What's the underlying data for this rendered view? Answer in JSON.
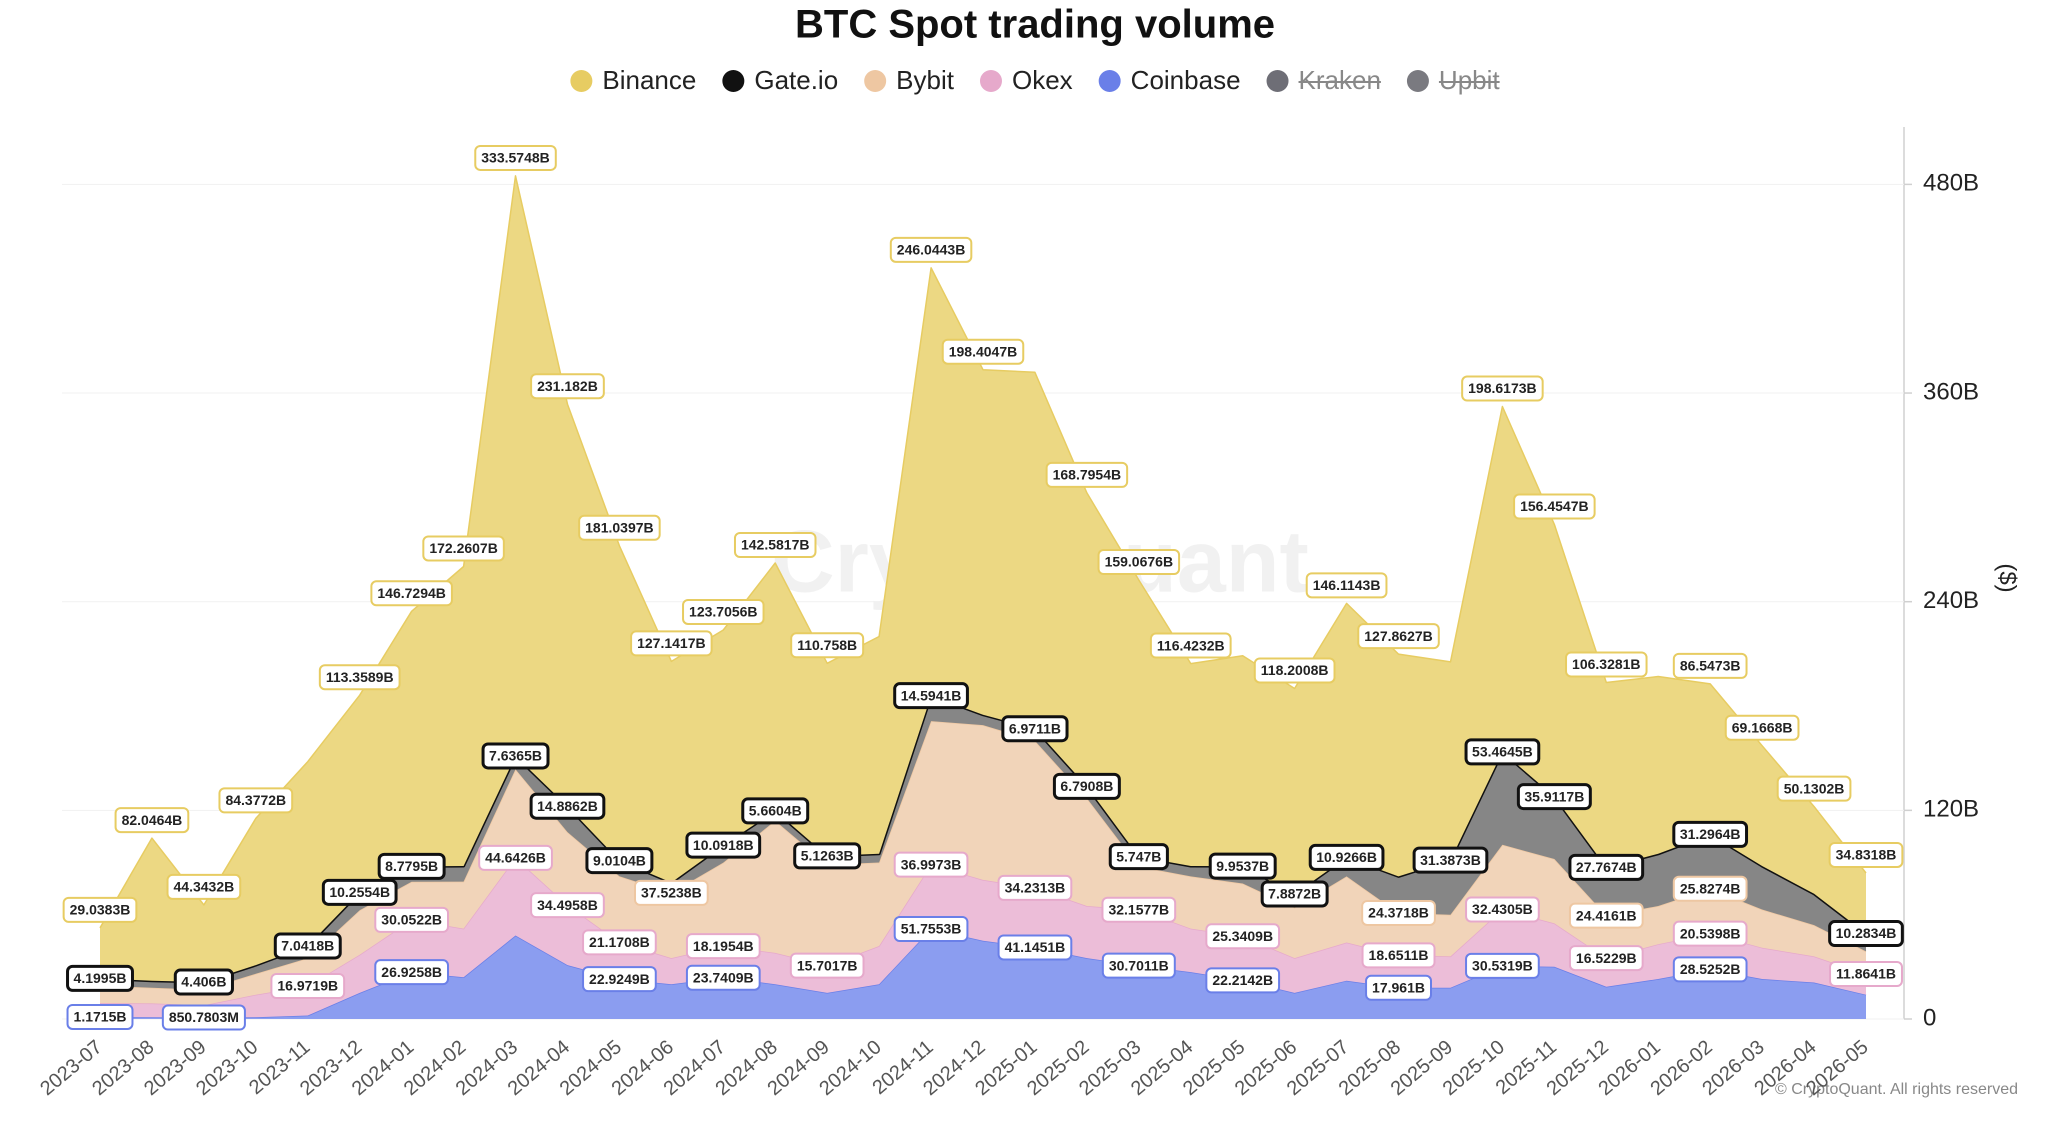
{
  "chart_data": {
    "type": "stacked-area",
    "title": "BTC Spot trading volume",
    "y_axis_label": "($)",
    "watermark": "CryptoQuant",
    "copyright": "© CryptoQuant. All rights reserved",
    "categories": [
      "2023-07",
      "2023-08",
      "2023-09",
      "2023-10",
      "2023-11",
      "2023-12",
      "2024-01",
      "2024-02",
      "2024-03",
      "2024-04",
      "2024-05",
      "2024-06",
      "2024-07",
      "2024-08",
      "2024-09",
      "2024-10",
      "2024-11",
      "2024-12",
      "2025-01",
      "2025-02",
      "2025-03",
      "2025-04",
      "2025-05",
      "2025-06",
      "2025-07",
      "2025-08",
      "2025-09",
      "2025-10",
      "2025-11",
      "2025-12",
      "2026-01",
      "2026-02",
      "2026-03",
      "2026-04",
      "2026-05"
    ],
    "ylim": [
      0,
      513
    ],
    "yticks": [
      0,
      {
        "value": 120,
        "label": "120B"
      },
      {
        "value": 240,
        "label": "240B"
      },
      {
        "value": 360,
        "label": "360B"
      },
      {
        "value": 480,
        "label": "480B"
      }
    ],
    "grid": true,
    "series": [
      {
        "name": "Binance",
        "color": "#e7cc62",
        "fill": "#ecd883",
        "values": [
          29.0383,
          82.0464,
          44.3432,
          84.3772,
          106,
          113.3589,
          146.7294,
          172.2607,
          333.5748,
          231.182,
          181.0397,
          127.1417,
          123.7056,
          142.5817,
          110.758,
          125,
          246.0443,
          198.4047,
          205,
          168.7954,
          159.0676,
          116.4232,
          121,
          118.2008,
          146.1143,
          127.8627,
          114,
          198.6173,
          156.4547,
          106.3281,
          102,
          86.5473,
          69.1668,
          50.1302,
          34.8318
        ],
        "value_labels": [
          "29.0383B",
          "82.0464B",
          "44.3432B",
          "84.3772B",
          null,
          "113.3589B",
          "146.7294B",
          "172.2607B",
          "333.5748B",
          "231.182B",
          "181.0397B",
          "127.1417B",
          "123.7056B",
          "142.5817B",
          "110.758B",
          null,
          "246.0443B",
          "198.4047B",
          null,
          "168.7954B",
          "159.0676B",
          "116.4232B",
          null,
          "118.2008B",
          "146.1143B",
          "127.8627B",
          null,
          "198.6173B",
          "156.4547B",
          "106.3281B",
          null,
          "86.5473B",
          "69.1668B",
          "50.1302B",
          "34.8318B"
        ]
      },
      {
        "name": "Gate.io",
        "color": "#111111",
        "fill": "#868686",
        "values": [
          4.1995,
          4,
          4.406,
          5,
          7.0418,
          10.2554,
          8.7795,
          9,
          7.6365,
          14.8862,
          9.0104,
          6,
          10.0918,
          5.6604,
          5.1263,
          5,
          14.5941,
          6,
          6.9711,
          6.7908,
          5.747,
          6,
          9.9537,
          7.8872,
          10.9266,
          21,
          31.3873,
          53.4645,
          35.9117,
          27.7674,
          30,
          31.2964,
          25,
          18,
          10.2834
        ],
        "value_labels": [
          "4.1995B",
          null,
          "4.406B",
          null,
          "7.0418B",
          "10.2554B",
          "8.7795B",
          null,
          "7.6365B",
          "14.8862B",
          "9.0104B",
          null,
          "10.0918B",
          "5.6604B",
          "5.1263B",
          null,
          "14.5941B",
          null,
          "6.9711B",
          "6.7908B",
          "5.747B",
          null,
          "9.9537B",
          "7.8872B",
          "10.9266B",
          null,
          "31.3873B",
          "53.4645B",
          "35.9117B",
          "27.7674B",
          null,
          "31.2964B",
          null,
          null,
          "10.2834B"
        ]
      },
      {
        "name": "Bybit",
        "color": "#eec7a2",
        "fill": "#f1d4b9",
        "values": [
          10,
          9,
          9,
          12,
          16,
          25.6,
          22,
          27,
          51,
          42,
          38,
          37.5238,
          48,
          76,
          58,
          48,
          82.6,
          89,
          84.6,
          62,
          24.8,
          30,
          30.4,
          29,
          38,
          24.3718,
          24,
          37.2,
          37,
          24.4161,
          22,
          25.8274,
          22,
          18,
          13
        ],
        "value_labels": [
          null,
          null,
          null,
          null,
          null,
          null,
          null,
          null,
          null,
          null,
          null,
          "37.5238B",
          null,
          null,
          null,
          null,
          null,
          null,
          null,
          null,
          null,
          null,
          null,
          null,
          null,
          "24.3718B",
          null,
          null,
          null,
          "24.4161B",
          null,
          "25.8274B",
          null,
          null,
          null
        ]
      },
      {
        "name": "Okex",
        "color": "#e6a9cb",
        "fill": "#ecbdd8",
        "values": [
          8,
          8,
          7,
          13,
          16.9719,
          22,
          30.0522,
          28,
          44.6426,
          34.4958,
          21.1708,
          15,
          18.1954,
          18,
          15.7017,
          22,
          36.9973,
          35,
          34.2313,
          30,
          32.1577,
          25,
          25.3409,
          20,
          22,
          18.6511,
          18,
          32.4305,
          25,
          16.5229,
          20,
          20.5398,
          18,
          15,
          11.8641
        ],
        "value_labels": [
          null,
          null,
          null,
          null,
          "16.9719B",
          null,
          "30.0522B",
          null,
          "44.6426B",
          "34.4958B",
          "21.1708B",
          null,
          "18.1954B",
          null,
          "15.7017B",
          null,
          "36.9973B",
          null,
          "34.2313B",
          null,
          "32.1577B",
          null,
          "25.3409B",
          null,
          null,
          "18.6511B",
          null,
          "32.4305B",
          null,
          "16.5229B",
          null,
          "20.5398B",
          null,
          null,
          "11.8641B"
        ]
      },
      {
        "name": "Coinbase",
        "color": "#6a7fe8",
        "fill": "#8b9df0",
        "values": [
          1.1715,
          1,
          0.8507803,
          1,
          2,
          15,
          26.9258,
          24,
          48,
          31,
          22.9249,
          20,
          23.7409,
          20,
          15,
          20,
          51.7553,
          45,
          41.1451,
          35,
          30.7011,
          27,
          22.2142,
          15,
          22,
          17.961,
          18,
          30.5319,
          30,
          18.5,
          23,
          28.5252,
          23,
          21,
          14
        ],
        "value_labels": [
          "1.1715B",
          null,
          "850.7803M",
          null,
          null,
          null,
          "26.9258B",
          null,
          null,
          null,
          "22.9249B",
          null,
          "23.7409B",
          null,
          null,
          null,
          "51.7553B",
          null,
          "41.1451B",
          null,
          "30.7011B",
          null,
          "22.2142B",
          null,
          null,
          "17.961B",
          null,
          "30.5319B",
          null,
          null,
          null,
          "28.5252B",
          null,
          null,
          null
        ]
      },
      {
        "name": "Kraken",
        "color": "#6e6e76",
        "hidden": true
      },
      {
        "name": "Upbit",
        "color": "#7a7a80",
        "hidden": true
      }
    ]
  }
}
